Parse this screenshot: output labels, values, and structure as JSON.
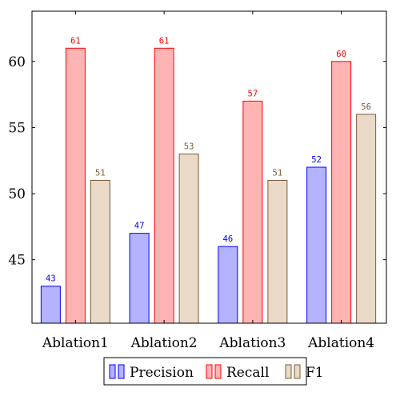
{
  "chart_data": {
    "type": "bar",
    "categories": [
      "Ablation1",
      "Ablation2",
      "Ablation3",
      "Ablation4"
    ],
    "series": [
      {
        "name": "Precision",
        "values": [
          43,
          47,
          46,
          52
        ],
        "fill": "#b3b3ff",
        "stroke": "#0000ff"
      },
      {
        "name": "Recall",
        "values": [
          61,
          61,
          57,
          60
        ],
        "fill": "#ffb3b3",
        "stroke": "#ff0000"
      },
      {
        "name": "F1",
        "values": [
          51,
          53,
          51,
          56
        ],
        "fill": "#ead9c6",
        "stroke": "#7a5c3a"
      }
    ],
    "yticks": [
      45,
      50,
      55,
      60
    ],
    "ylim": [
      40.2,
      63.8
    ],
    "title": "",
    "xlabel": "",
    "ylabel": "",
    "legend_position": "bottom-center",
    "grid": false
  }
}
